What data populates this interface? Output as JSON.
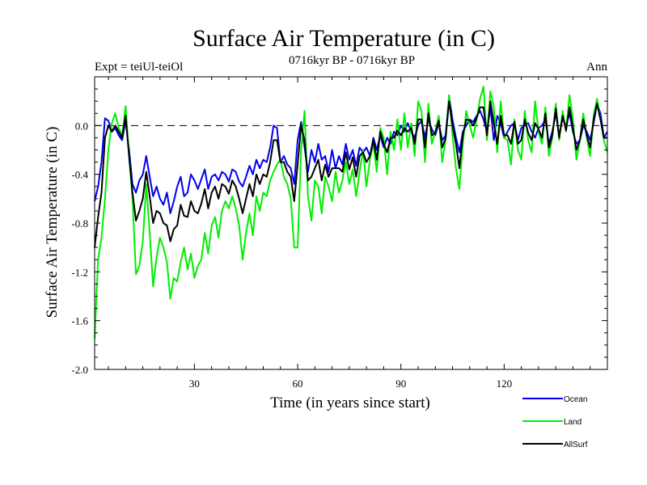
{
  "chart_data": {
    "type": "line",
    "title": "Surface Air Temperature (in C)",
    "subtitle": "0716kyr BP - 0716kyr BP",
    "left_label": "Expt = teiUl-teiOl",
    "right_label": "Ann",
    "xlabel": "Time (in years since start)",
    "ylabel": "Surface Air Temperature (in C)",
    "xlim": [
      1,
      150
    ],
    "ylim": [
      -2.0,
      0.4
    ],
    "x_ticks": [
      30,
      60,
      90,
      120
    ],
    "y_ticks": [
      -2.0,
      -1.6,
      -1.2,
      -0.8,
      -0.4,
      0.0
    ],
    "y_tick_labels": [
      "-2.0",
      "-1.6",
      "-1.2",
      "-0.8",
      "-0.4",
      "0.0"
    ],
    "x_tick_labels": [
      "30",
      "60",
      "90",
      "120"
    ],
    "zero_line": true,
    "legend_position": "bottom-right",
    "x": [
      1,
      2,
      3,
      4,
      5,
      6,
      7,
      8,
      9,
      10,
      11,
      12,
      13,
      14,
      15,
      16,
      17,
      18,
      19,
      20,
      21,
      22,
      23,
      24,
      25,
      26,
      27,
      28,
      29,
      30,
      31,
      32,
      33,
      34,
      35,
      36,
      37,
      38,
      39,
      40,
      41,
      42,
      43,
      44,
      45,
      46,
      47,
      48,
      49,
      50,
      51,
      52,
      53,
      54,
      55,
      56,
      57,
      58,
      59,
      60,
      61,
      62,
      63,
      64,
      65,
      66,
      67,
      68,
      69,
      70,
      71,
      72,
      73,
      74,
      75,
      76,
      77,
      78,
      79,
      80,
      81,
      82,
      83,
      84,
      85,
      86,
      87,
      88,
      89,
      90,
      91,
      92,
      93,
      94,
      95,
      96,
      97,
      98,
      99,
      100,
      101,
      102,
      103,
      104,
      105,
      106,
      107,
      108,
      109,
      110,
      111,
      112,
      113,
      114,
      115,
      116,
      117,
      118,
      119,
      120,
      121,
      122,
      123,
      124,
      125,
      126,
      127,
      128,
      129,
      130,
      131,
      132,
      133,
      134,
      135,
      136,
      137,
      138,
      139,
      140,
      141,
      142,
      143,
      144,
      145,
      146,
      147,
      148,
      149,
      150
    ],
    "series": [
      {
        "name": "Ocean",
        "color": "#0000ee",
        "values": [
          -0.62,
          -0.5,
          -0.3,
          0.06,
          0.04,
          -0.05,
          -0.02,
          -0.08,
          -0.12,
          0.04,
          -0.2,
          -0.48,
          -0.55,
          -0.45,
          -0.4,
          -0.25,
          -0.42,
          -0.58,
          -0.5,
          -0.6,
          -0.65,
          -0.55,
          -0.72,
          -0.62,
          -0.5,
          -0.42,
          -0.58,
          -0.55,
          -0.4,
          -0.45,
          -0.52,
          -0.44,
          -0.36,
          -0.52,
          -0.42,
          -0.4,
          -0.45,
          -0.38,
          -0.4,
          -0.46,
          -0.36,
          -0.38,
          -0.46,
          -0.5,
          -0.42,
          -0.33,
          -0.4,
          -0.28,
          -0.35,
          -0.28,
          -0.3,
          -0.18,
          0.0,
          -0.02,
          -0.3,
          -0.25,
          -0.32,
          -0.35,
          -0.48,
          -0.12,
          0.03,
          -0.18,
          -0.38,
          -0.2,
          -0.3,
          -0.15,
          -0.28,
          -0.25,
          -0.38,
          -0.2,
          -0.35,
          -0.25,
          -0.32,
          -0.15,
          -0.28,
          -0.2,
          -0.33,
          -0.18,
          -0.22,
          -0.18,
          -0.25,
          -0.1,
          -0.2,
          -0.08,
          -0.18,
          -0.1,
          -0.15,
          -0.05,
          -0.08,
          0.0,
          -0.05,
          0.02,
          -0.05,
          -0.1,
          0.0,
          0.04,
          -0.1,
          0.05,
          -0.03,
          -0.08,
          0.02,
          -0.12,
          -0.08,
          0.24,
          0.05,
          -0.1,
          -0.22,
          -0.05,
          0.0,
          0.05,
          0.03,
          0.08,
          0.12,
          0.05,
          -0.05,
          0.15,
          -0.12,
          0.08,
          0.02,
          -0.1,
          -0.05,
          0.0,
          0.02,
          -0.12,
          -0.02,
          0.0,
          0.02,
          -0.05,
          -0.1,
          -0.02,
          0.0,
          0.05,
          -0.15,
          -0.05,
          0.1,
          -0.08,
          0.06,
          0.0,
          0.1,
          -0.05,
          -0.15,
          -0.12,
          0.0,
          -0.05,
          -0.12,
          0.02,
          0.18,
          0.1,
          -0.1,
          -0.05
        ]
      },
      {
        "name": "Land",
        "color": "#00ee00",
        "values": [
          -1.75,
          -1.1,
          -0.92,
          -0.6,
          -0.2,
          0.02,
          0.1,
          -0.02,
          -0.08,
          0.16,
          -0.25,
          -0.6,
          -1.22,
          -1.15,
          -0.95,
          -0.48,
          -0.88,
          -1.32,
          -1.08,
          -0.92,
          -1.0,
          -1.12,
          -1.42,
          -1.25,
          -1.28,
          -1.12,
          -1.0,
          -1.18,
          -1.05,
          -1.25,
          -1.15,
          -1.1,
          -0.88,
          -1.05,
          -0.82,
          -0.75,
          -0.92,
          -0.7,
          -0.62,
          -0.68,
          -0.58,
          -0.68,
          -0.82,
          -1.1,
          -0.88,
          -0.72,
          -0.9,
          -0.58,
          -0.7,
          -0.55,
          -0.58,
          -0.45,
          -0.38,
          -0.32,
          -0.28,
          -0.42,
          -0.48,
          -0.6,
          -1.0,
          -1.0,
          -0.2,
          0.12,
          -0.58,
          -0.78,
          -0.45,
          -0.5,
          -0.72,
          -0.42,
          -0.5,
          -0.62,
          -0.38,
          -0.55,
          -0.45,
          -0.3,
          -0.48,
          -0.36,
          -0.58,
          -0.38,
          -0.2,
          -0.5,
          -0.28,
          -0.15,
          -0.38,
          -0.02,
          -0.1,
          -0.4,
          -0.05,
          -0.2,
          0.05,
          -0.2,
          0.1,
          -0.18,
          0.02,
          -0.25,
          0.2,
          0.12,
          -0.3,
          0.18,
          -0.15,
          -0.05,
          0.08,
          -0.3,
          -0.12,
          0.25,
          -0.08,
          -0.35,
          -0.52,
          -0.15,
          0.12,
          0.0,
          -0.1,
          0.05,
          0.22,
          0.32,
          -0.12,
          0.28,
          0.15,
          -0.22,
          0.2,
          -0.1,
          -0.12,
          -0.32,
          0.05,
          -0.2,
          -0.28,
          0.12,
          -0.12,
          -0.22,
          0.2,
          -0.05,
          -0.15,
          0.15,
          -0.25,
          -0.1,
          0.18,
          -0.12,
          0.12,
          -0.05,
          0.25,
          0.05,
          -0.28,
          -0.12,
          0.1,
          -0.1,
          -0.25,
          0.08,
          0.22,
          0.05,
          -0.12,
          -0.22
        ]
      },
      {
        "name": "AllSurf",
        "color": "#000000",
        "values": [
          -1.0,
          -0.75,
          -0.55,
          -0.1,
          0.0,
          -0.05,
          0.0,
          -0.05,
          -0.1,
          0.08,
          -0.25,
          -0.55,
          -0.78,
          -0.7,
          -0.6,
          -0.38,
          -0.58,
          -0.8,
          -0.7,
          -0.72,
          -0.8,
          -0.82,
          -0.95,
          -0.85,
          -0.82,
          -0.65,
          -0.74,
          -0.75,
          -0.62,
          -0.7,
          -0.72,
          -0.64,
          -0.52,
          -0.68,
          -0.55,
          -0.5,
          -0.6,
          -0.48,
          -0.5,
          -0.56,
          -0.45,
          -0.5,
          -0.6,
          -0.72,
          -0.6,
          -0.48,
          -0.58,
          -0.4,
          -0.48,
          -0.4,
          -0.42,
          -0.3,
          -0.12,
          -0.12,
          -0.3,
          -0.3,
          -0.38,
          -0.42,
          -0.62,
          -0.32,
          0.0,
          -0.12,
          -0.45,
          -0.42,
          -0.35,
          -0.28,
          -0.45,
          -0.32,
          -0.42,
          -0.35,
          -0.35,
          -0.35,
          -0.38,
          -0.22,
          -0.36,
          -0.26,
          -0.42,
          -0.25,
          -0.22,
          -0.3,
          -0.25,
          -0.12,
          -0.28,
          -0.05,
          -0.15,
          -0.22,
          -0.1,
          -0.1,
          -0.04,
          -0.08,
          -0.02,
          -0.05,
          -0.02,
          -0.15,
          0.05,
          0.05,
          -0.18,
          0.1,
          -0.08,
          -0.06,
          0.04,
          -0.18,
          -0.1,
          0.2,
          0.0,
          -0.15,
          -0.35,
          -0.08,
          0.05,
          0.04,
          0.0,
          0.06,
          0.15,
          0.15,
          -0.08,
          0.2,
          0.02,
          -0.15,
          0.08,
          -0.08,
          -0.08,
          -0.15,
          0.03,
          -0.15,
          -0.12,
          0.05,
          -0.06,
          -0.12,
          0.02,
          -0.03,
          -0.1,
          0.1,
          -0.18,
          -0.08,
          0.14,
          -0.1,
          0.08,
          -0.04,
          0.15,
          -0.02,
          -0.2,
          -0.12,
          0.05,
          -0.08,
          -0.18,
          0.05,
          0.18,
          0.05,
          -0.1,
          -0.1
        ]
      }
    ]
  }
}
